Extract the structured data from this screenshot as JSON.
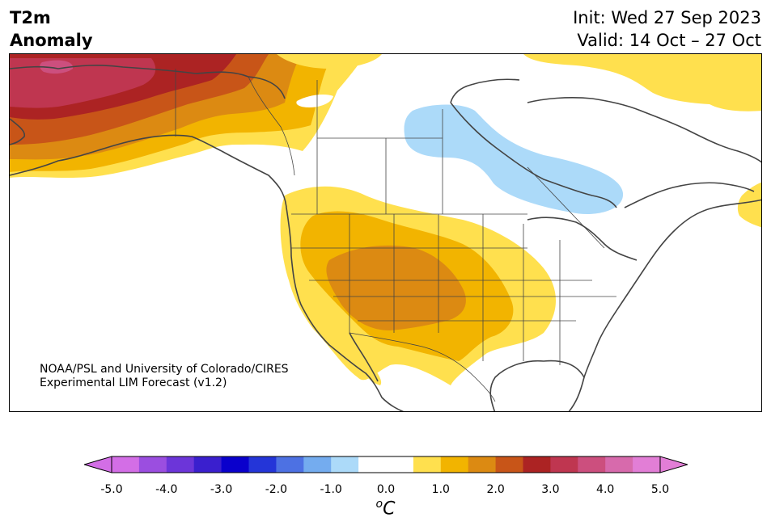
{
  "header": {
    "variable": "T2m",
    "quantity": "Anomaly",
    "init": "Init: Wed 27 Sep 2023",
    "valid": "Valid: 14 Oct – 27 Oct"
  },
  "credit": {
    "line1": "NOAA/PSL and University of Colorado/CIRES",
    "line2": "Experimental LIM Forecast (v1.2)"
  },
  "colorbar": {
    "unit_symbol": "o",
    "unit_letter": "C",
    "tick_labels": [
      "-5.0",
      "-4.0",
      "-3.0",
      "-2.0",
      "-1.0",
      "0.0",
      "1.0",
      "2.0",
      "3.0",
      "4.0",
      "5.0"
    ],
    "colors": [
      "#d36ee6",
      "#9b4ee0",
      "#6c35d9",
      "#3a1fce",
      "#0a00cc",
      "#2435d8",
      "#4d71e3",
      "#74acef",
      "#acdaf9",
      "#ffffff",
      "#ffffff",
      "#ffe04e",
      "#f2b400",
      "#dc8a12",
      "#c85518",
      "#ac2323",
      "#bf3650",
      "#cc4f7e",
      "#d76aac",
      "#e27ed6"
    ],
    "under_color": "#d36ee6",
    "over_color": "#e27ed6",
    "range": [
      -5.0,
      5.0
    ]
  },
  "map_style": {
    "land": "#ffffff",
    "border": "#444444",
    "anomaly_colors": {
      "neg_1": "#acdaf9",
      "pos_1": "#ffe04e",
      "pos_1_5": "#f2b400",
      "pos_2": "#dc8a12",
      "pos_2_5": "#c85518",
      "pos_3": "#ac2323",
      "pos_3_5": "#bf3650",
      "pos_4": "#cc4f7e"
    }
  }
}
